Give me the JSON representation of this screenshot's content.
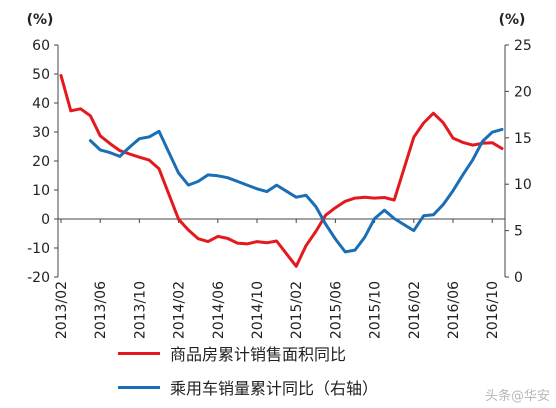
{
  "chart_data": {
    "type": "line",
    "categories": [
      "2013/02",
      "2013/03",
      "2013/04",
      "2013/05",
      "2013/06",
      "2013/07",
      "2013/08",
      "2013/09",
      "2013/10",
      "2013/11",
      "2013/12",
      "2014/01",
      "2014/02",
      "2014/03",
      "2014/04",
      "2014/05",
      "2014/06",
      "2014/07",
      "2014/08",
      "2014/09",
      "2014/10",
      "2014/11",
      "2014/12",
      "2015/01",
      "2015/02",
      "2015/03",
      "2015/04",
      "2015/05",
      "2015/06",
      "2015/07",
      "2015/08",
      "2015/09",
      "2015/10",
      "2015/11",
      "2015/12",
      "2016/01",
      "2016/02",
      "2016/03",
      "2016/04",
      "2016/05",
      "2016/06",
      "2016/07",
      "2016/08",
      "2016/09",
      "2016/10",
      "2016/11"
    ],
    "x_tick_labels": [
      "2013/02",
      "2013/06",
      "2013/10",
      "2014/02",
      "2014/06",
      "2014/10",
      "2015/02",
      "2015/06",
      "2015/10",
      "2016/02",
      "2016/06",
      "2016/10"
    ],
    "left_unit": "(%)",
    "right_unit": "(%)",
    "left_ylim": [
      -20,
      60
    ],
    "right_ylim": [
      0,
      25
    ],
    "left_ticks": [
      "60",
      "50",
      "40",
      "30",
      "20",
      "10",
      "0",
      "-10",
      "-20"
    ],
    "right_ticks": [
      "25",
      "20",
      "15",
      "10",
      "5",
      "0"
    ],
    "series": [
      {
        "name": "商品房累计销售面积同比",
        "axis": "left",
        "color": "#e4191e",
        "values": [
          49.5,
          37.3,
          38.0,
          35.6,
          28.7,
          26.0,
          23.6,
          22.4,
          21.3,
          20.3,
          17.3,
          null,
          -0.1,
          -3.8,
          -6.8,
          -7.8,
          -6.0,
          -6.7,
          -8.3,
          -8.6,
          -7.8,
          -8.2,
          -7.6,
          null,
          -16.3,
          -9.2,
          -4.3,
          1.3,
          3.9,
          6.1,
          7.2,
          7.5,
          7.2,
          7.4,
          6.5,
          null,
          28.2,
          33.1,
          36.5,
          33.2,
          27.9,
          26.4,
          25.5,
          26.1,
          26.3,
          24.3
        ]
      },
      {
        "name": "乘用车销量累计同比（右轴）",
        "axis": "right",
        "color": "#1a6eb5",
        "values": [
          null,
          null,
          null,
          14.7,
          13.7,
          13.4,
          13.0,
          14.0,
          14.9,
          15.1,
          15.7,
          null,
          11.2,
          9.9,
          10.3,
          11.0,
          10.9,
          10.7,
          10.3,
          9.9,
          9.5,
          9.2,
          9.9,
          null,
          8.6,
          8.8,
          7.6,
          5.7,
          4.1,
          2.7,
          2.9,
          4.3,
          6.3,
          7.2,
          6.3,
          null,
          5.0,
          6.6,
          6.7,
          7.8,
          9.3,
          11.0,
          12.6,
          14.6,
          15.6,
          15.9
        ]
      }
    ],
    "grid": false,
    "legend_position": "bottom-center"
  },
  "watermark": "头条@华安"
}
